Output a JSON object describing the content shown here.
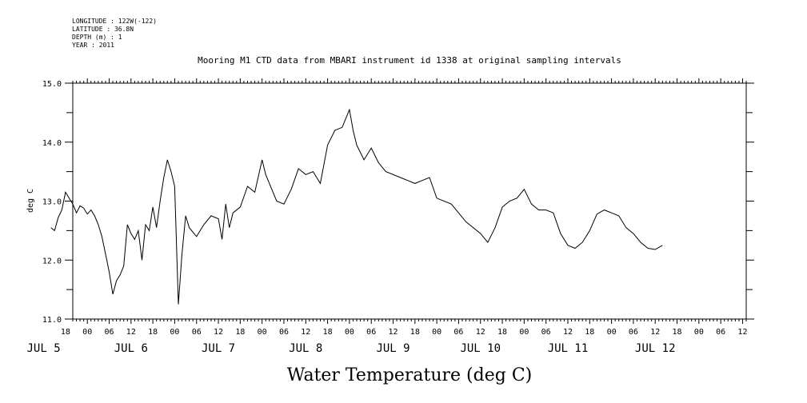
{
  "meta": {
    "lines": [
      "LONGITUDE : 122W(-122)",
      "LATITUDE : 36.8N",
      "DEPTH (m) : 1",
      "YEAR : 2011"
    ]
  },
  "chart_data": {
    "type": "line",
    "title": "Mooring M1 CTD data from MBARI instrument id 1338 at original sampling intervals",
    "ylabel": "deg C",
    "xlabel": "Water Temperature (deg C)",
    "ylim": [
      11.0,
      15.0
    ],
    "yticks": [
      "11.0",
      "12.0",
      "13.0",
      "14.0",
      "15.0"
    ],
    "xlim_hours": [
      -4,
      181
    ],
    "x_hour_ticks": [
      "18",
      "00",
      "06",
      "12",
      "18",
      "00",
      "06",
      "12",
      "18",
      "00",
      "06",
      "12",
      "18",
      "00",
      "06",
      "12",
      "18",
      "00",
      "06",
      "12",
      "18",
      "00",
      "06",
      "12",
      "18",
      "00",
      "06",
      "12",
      "18",
      "00",
      "06",
      "12"
    ],
    "x_day_labels": [
      "JUL 5",
      "JUL 6",
      "JUL 7",
      "JUL 8",
      "JUL 9",
      "JUL 10",
      "JUL 11",
      "JUL 12"
    ],
    "grid": false,
    "series": [
      {
        "x": [
          "JUL 5 14:00",
          "JUL 5 15:00",
          "JUL 5 16:00",
          "JUL 5 17:00",
          "JUL 5 18:00",
          "JUL 5 19:00",
          "JUL 5 20:00",
          "JUL 5 21:00",
          "JUL 5 22:00",
          "JUL 5 23:00",
          "JUL 6 00:00",
          "JUL 6 01:00",
          "JUL 6 02:00",
          "JUL 6 03:00",
          "JUL 6 04:00",
          "JUL 6 05:00",
          "JUL 6 06:00",
          "JUL 6 07:00",
          "JUL 6 08:00",
          "JUL 6 09:00",
          "JUL 6 10:00",
          "JUL 6 11:00",
          "JUL 6 12:00",
          "JUL 6 13:00",
          "JUL 6 14:00",
          "JUL 6 15:00",
          "JUL 6 16:00",
          "JUL 6 17:00",
          "JUL 6 18:00",
          "JUL 6 19:00",
          "JUL 6 20:00",
          "JUL 6 21:00",
          "JUL 6 22:00",
          "JUL 6 23:00",
          "JUL 7 00:00",
          "JUL 7 01:00",
          "JUL 7 02:00",
          "JUL 7 03:00",
          "JUL 7 04:00",
          "JUL 7 06:00",
          "JUL 7 08:00",
          "JUL 7 10:00",
          "JUL 7 12:00",
          "JUL 7 13:00",
          "JUL 7 14:00",
          "JUL 7 15:00",
          "JUL 7 16:00",
          "JUL 7 18:00",
          "JUL 7 20:00",
          "JUL 7 22:00",
          "JUL 8 00:00",
          "JUL 8 01:00",
          "JUL 8 02:00",
          "JUL 8 04:00",
          "JUL 8 06:00",
          "JUL 8 08:00",
          "JUL 8 10:00",
          "JUL 8 12:00",
          "JUL 8 14:00",
          "JUL 8 16:00",
          "JUL 8 18:00",
          "JUL 8 20:00",
          "JUL 8 22:00",
          "JUL 9 00:00",
          "JUL 9 01:00",
          "JUL 9 02:00",
          "JUL 9 04:00",
          "JUL 9 06:00",
          "JUL 9 08:00",
          "JUL 9 10:00",
          "JUL 9 14:00",
          "JUL 9 18:00",
          "JUL 9 20:00",
          "JUL 9 22:00",
          "JUL 10 00:00",
          "JUL 10 04:00",
          "JUL 10 08:00",
          "JUL 10 12:00",
          "JUL 10 14:00",
          "JUL 10 16:00",
          "JUL 10 18:00",
          "JUL 10 20:00",
          "JUL 10 22:00",
          "JUL 11 00:00",
          "JUL 11 02:00",
          "JUL 11 04:00",
          "JUL 11 06:00",
          "JUL 11 08:00",
          "JUL 11 10:00",
          "JUL 11 12:00",
          "JUL 11 14:00",
          "JUL 11 16:00",
          "JUL 11 18:00",
          "JUL 11 20:00",
          "JUL 11 22:00",
          "JUL 12 00:00",
          "JUL 12 02:00",
          "JUL 12 04:00",
          "JUL 12 06:00",
          "JUL 12 08:00",
          "JUL 12 10:00",
          "JUL 12 12:00",
          "JUL 12 14:00"
        ],
        "y": [
          12.55,
          12.5,
          12.72,
          12.85,
          13.15,
          13.05,
          12.95,
          12.8,
          12.92,
          12.88,
          12.78,
          12.85,
          12.75,
          12.6,
          12.4,
          12.1,
          11.8,
          11.42,
          11.65,
          11.75,
          11.9,
          12.6,
          12.45,
          12.35,
          12.5,
          12.0,
          12.6,
          12.5,
          12.9,
          12.55,
          13.0,
          13.4,
          13.7,
          13.5,
          13.25,
          11.25,
          12.1,
          12.75,
          12.55,
          12.4,
          12.6,
          12.75,
          12.7,
          12.35,
          12.95,
          12.55,
          12.8,
          12.9,
          13.25,
          13.15,
          13.7,
          13.45,
          13.3,
          13.0,
          12.95,
          13.2,
          13.55,
          13.45,
          13.5,
          13.3,
          13.95,
          14.2,
          14.25,
          14.55,
          14.2,
          13.95,
          13.7,
          13.9,
          13.65,
          13.5,
          13.4,
          13.3,
          13.35,
          13.4,
          13.05,
          12.95,
          12.65,
          12.45,
          12.3,
          12.55,
          12.9,
          13.0,
          13.05,
          13.2,
          12.95,
          12.85,
          12.85,
          12.8,
          12.45,
          12.25,
          12.2,
          12.3,
          12.5,
          12.78,
          12.85,
          12.8,
          12.75,
          12.55,
          12.45,
          12.3,
          12.2,
          12.18,
          12.25
        ]
      }
    ]
  }
}
